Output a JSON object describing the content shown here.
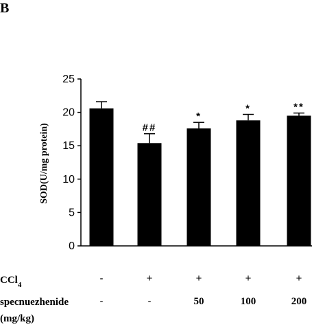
{
  "panel_label": "B",
  "chart_data": {
    "type": "bar",
    "ylabel": "SOD(U/mg protein)",
    "ylim": [
      0,
      25
    ],
    "yticks": [
      0,
      5,
      10,
      15,
      20,
      25
    ],
    "bar_color": "#000000",
    "groups": [
      {
        "value": 20.6,
        "error": 1.0,
        "sig": ""
      },
      {
        "value": 15.4,
        "error": 1.4,
        "sig": "##"
      },
      {
        "value": 17.6,
        "error": 0.9,
        "sig": "*"
      },
      {
        "value": 18.8,
        "error": 0.9,
        "sig": "*"
      },
      {
        "value": 19.5,
        "error": 0.4,
        "sig": "**"
      }
    ],
    "treatment_rows": [
      {
        "label": "CCl",
        "label_sub": "4",
        "values": [
          "-",
          "+",
          "+",
          "+",
          "+"
        ]
      },
      {
        "label": "specnuezhenide",
        "label_line2": "(mg/kg)",
        "values": [
          "-",
          "-",
          "50",
          "100",
          "200"
        ]
      }
    ]
  }
}
